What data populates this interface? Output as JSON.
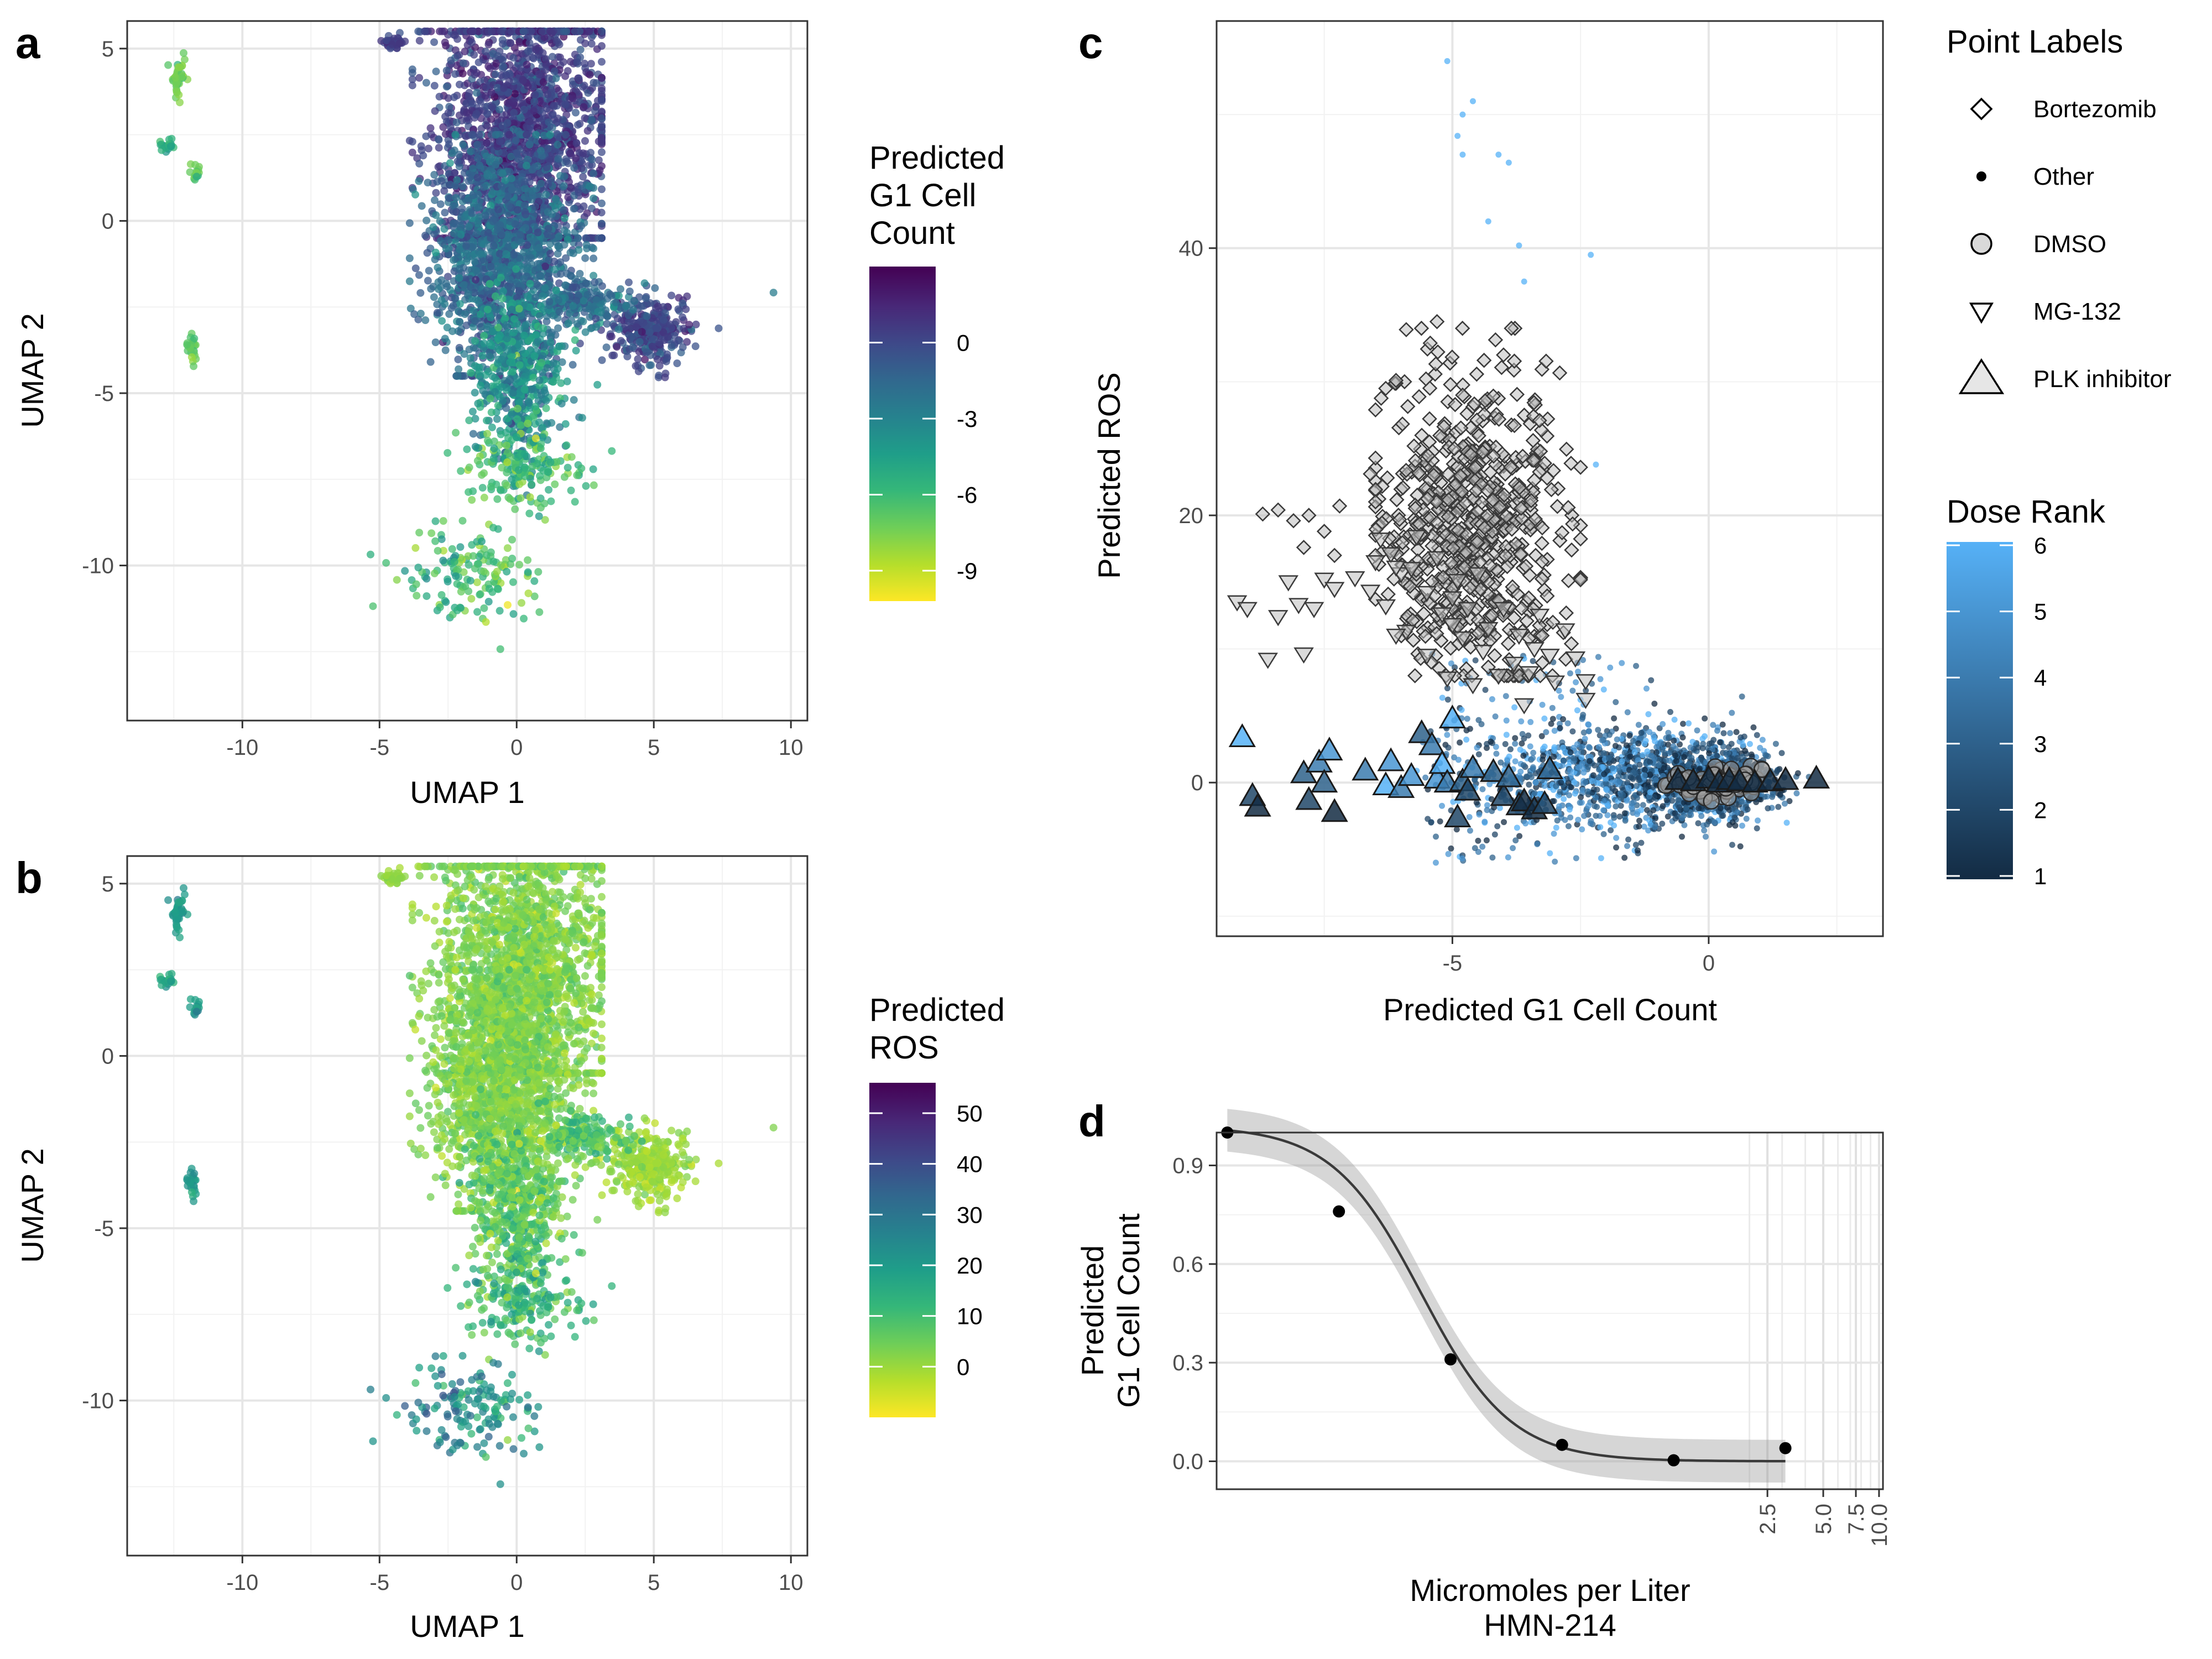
{
  "panels": {
    "a": "a",
    "b": "b",
    "c": "c",
    "d": "d"
  },
  "colors": {
    "viridis": [
      "#fde725",
      "#b5de2b",
      "#6ece58",
      "#35b779",
      "#1f9e89",
      "#26828e",
      "#31688e",
      "#3e4989",
      "#482878",
      "#440154"
    ],
    "dose_low": "#132b43",
    "dose_high": "#56b1f7",
    "gray_fill": "#d9d9d9",
    "grid": "#ebebeb",
    "axis": "#333333"
  },
  "chart_data": [
    {
      "panel": "a",
      "type": "scatter",
      "xlabel": "UMAP 1",
      "ylabel": "UMAP 2",
      "xlim": [
        -14.2,
        10.6
      ],
      "ylim": [
        -14.5,
        5.8
      ],
      "xticks": [
        -10,
        -5,
        0,
        5,
        10
      ],
      "xtick_labels": [
        "-10",
        "-5",
        "0",
        "5",
        "10"
      ],
      "yticks": [
        5,
        0,
        -5,
        -10
      ],
      "ytick_labels": [
        "5",
        "0",
        "-5",
        "-10"
      ],
      "legend": {
        "title": [
          "Predicted",
          "G1 Cell",
          "Count"
        ],
        "position": "right",
        "colorscale": "viridis-reversed",
        "ticks": [
          0,
          -3,
          -6,
          -9
        ],
        "tick_labels": [
          "0",
          "-3",
          "-6",
          "-9"
        ],
        "range": [
          -10.2,
          3
        ]
      },
      "clusters": [
        {
          "name": "main-upper",
          "center": [
            0.2,
            2.6
          ],
          "spread": [
            1.6,
            2.2
          ],
          "value_mean": 0.6,
          "value_sd": 0.9
        },
        {
          "name": "main-body",
          "center": [
            -0.5,
            -1.0
          ],
          "spread": [
            1.3,
            1.6
          ],
          "value_mean": -1.5,
          "value_sd": 1.0
        },
        {
          "name": "lower-trunk",
          "center": [
            0.0,
            -4.5
          ],
          "spread": [
            0.8,
            1.2
          ],
          "value_mean": -3.5,
          "value_sd": 1.3
        },
        {
          "name": "arm-right",
          "center": [
            4.8,
            -3.2
          ],
          "spread": [
            0.7,
            0.5
          ],
          "value_mean": 0.2,
          "value_sd": 0.8
        },
        {
          "name": "arm-mid",
          "center": [
            2.6,
            -2.4
          ],
          "spread": [
            0.8,
            0.3
          ],
          "value_mean": -1.8,
          "value_sd": 1.0
        },
        {
          "name": "top-blob",
          "center": [
            -4.5,
            5.2
          ],
          "spread": [
            0.2,
            0.1
          ],
          "value_mean": 0.5,
          "value_sd": 0.4
        },
        {
          "name": "strands-low",
          "center": [
            0.2,
            -7.0
          ],
          "spread": [
            1.0,
            0.6
          ],
          "value_mean": -6.0,
          "value_sd": 1.2
        },
        {
          "name": "strands-bottom",
          "center": [
            -1.5,
            -10.2
          ],
          "spread": [
            1.2,
            0.7
          ],
          "value_mean": -6.3,
          "value_sd": 1.2
        },
        {
          "name": "far-left-top",
          "center": [
            -12.3,
            4.2
          ],
          "spread": [
            0.15,
            0.3
          ],
          "value_mean": -7.3,
          "value_sd": 0.6
        },
        {
          "name": "far-left-mid",
          "center": [
            -12.7,
            2.2
          ],
          "spread": [
            0.15,
            0.1
          ],
          "value_mean": -5.0,
          "value_sd": 0.6
        },
        {
          "name": "far-left-mid2",
          "center": [
            -11.7,
            1.4
          ],
          "spread": [
            0.1,
            0.15
          ],
          "value_mean": -7.0,
          "value_sd": 0.6
        },
        {
          "name": "far-left-low",
          "center": [
            -11.8,
            -3.7
          ],
          "spread": [
            0.1,
            0.2
          ],
          "value_mean": -7.0,
          "value_sd": 0.6
        },
        {
          "name": "outlier",
          "center": [
            9.4,
            -2.1
          ],
          "spread": [
            0.02,
            0.02
          ],
          "value_mean": -2.5,
          "value_sd": 0.2
        }
      ]
    },
    {
      "panel": "b",
      "type": "scatter",
      "xlabel": "UMAP 1",
      "ylabel": "UMAP 2",
      "xlim": [
        -14.2,
        10.6
      ],
      "ylim": [
        -14.5,
        5.8
      ],
      "xticks": [
        -10,
        -5,
        0,
        5,
        10
      ],
      "xtick_labels": [
        "-10",
        "-5",
        "0",
        "5",
        "10"
      ],
      "yticks": [
        5,
        0,
        -5,
        -10
      ],
      "ytick_labels": [
        "5",
        "0",
        "-5",
        "-10"
      ],
      "legend": {
        "title": [
          "Predicted",
          "ROS"
        ],
        "position": "right",
        "colorscale": "viridis-reversed",
        "ticks": [
          50,
          40,
          30,
          20,
          10,
          0
        ],
        "tick_labels": [
          "50",
          "40",
          "30",
          "20",
          "10",
          "0"
        ],
        "range": [
          -10,
          56
        ]
      },
      "clusters": [
        {
          "name": "main-upper",
          "center": [
            0.2,
            2.6
          ],
          "spread": [
            1.6,
            2.2
          ],
          "value_mean": 3,
          "value_sd": 3
        },
        {
          "name": "main-body",
          "center": [
            -0.5,
            -1.0
          ],
          "spread": [
            1.3,
            1.6
          ],
          "value_mean": 3,
          "value_sd": 3
        },
        {
          "name": "lower-trunk",
          "center": [
            0.0,
            -4.5
          ],
          "spread": [
            0.8,
            1.2
          ],
          "value_mean": 7,
          "value_sd": 5
        },
        {
          "name": "arm-right",
          "center": [
            4.8,
            -3.2
          ],
          "spread": [
            0.7,
            0.5
          ],
          "value_mean": 0,
          "value_sd": 2
        },
        {
          "name": "arm-mid",
          "center": [
            2.6,
            -2.4
          ],
          "spread": [
            0.8,
            0.3
          ],
          "value_mean": 8,
          "value_sd": 5
        },
        {
          "name": "top-blob",
          "center": [
            -4.5,
            5.2
          ],
          "spread": [
            0.2,
            0.1
          ],
          "value_mean": 1,
          "value_sd": 1
        },
        {
          "name": "strands-low",
          "center": [
            0.2,
            -7.0
          ],
          "spread": [
            1.0,
            0.6
          ],
          "value_mean": 12,
          "value_sd": 6
        },
        {
          "name": "strands-bottom",
          "center": [
            -1.5,
            -10.2
          ],
          "spread": [
            1.2,
            0.7
          ],
          "value_mean": 22,
          "value_sd": 7
        },
        {
          "name": "far-left-top",
          "center": [
            -12.3,
            4.2
          ],
          "spread": [
            0.15,
            0.3
          ],
          "value_mean": 20,
          "value_sd": 3
        },
        {
          "name": "far-left-mid",
          "center": [
            -12.7,
            2.2
          ],
          "spread": [
            0.15,
            0.1
          ],
          "value_mean": 18,
          "value_sd": 3
        },
        {
          "name": "far-left-mid2",
          "center": [
            -11.7,
            1.4
          ],
          "spread": [
            0.1,
            0.15
          ],
          "value_mean": 20,
          "value_sd": 3
        },
        {
          "name": "far-left-low",
          "center": [
            -11.8,
            -3.7
          ],
          "spread": [
            0.1,
            0.2
          ],
          "value_mean": 20,
          "value_sd": 3
        },
        {
          "name": "outlier",
          "center": [
            9.4,
            -2.1
          ],
          "spread": [
            0.02,
            0.02
          ],
          "value_mean": 3,
          "value_sd": 0.5
        }
      ]
    },
    {
      "panel": "c",
      "type": "scatter",
      "xlabel": "Predicted G1 Cell Count",
      "ylabel": "Predicted ROS",
      "xlim": [
        -9.6,
        3.4
      ],
      "ylim": [
        -11.5,
        57
      ],
      "xticks": [
        -5,
        0
      ],
      "xtick_labels": [
        "-5",
        "0"
      ],
      "yticks": [
        40,
        20,
        0
      ],
      "ytick_labels": [
        "40",
        "20",
        "0"
      ],
      "legend": {
        "title": "Point Labels",
        "position": "right",
        "entries": [
          {
            "label": "Bortezomib",
            "shape": "diamond"
          },
          {
            "label": "Other",
            "shape": "dot"
          },
          {
            "label": "DMSO",
            "shape": "circle"
          },
          {
            "label": "MG-132",
            "shape": "triangle-down"
          },
          {
            "label": "PLK inhibitor",
            "shape": "triangle-up"
          }
        ]
      },
      "colorbar": {
        "title": "Dose Rank",
        "ticks": [
          6,
          5,
          4,
          3,
          2,
          1
        ],
        "tick_labels": [
          "6",
          "5",
          "4",
          "3",
          "2",
          "1"
        ],
        "range": [
          1,
          6
        ]
      },
      "groups": {
        "other_main": {
          "center": [
            -1.5,
            0.5
          ],
          "spread": [
            1.6,
            1.8
          ],
          "count": 1100
        },
        "other_dense": {
          "center": [
            0.0,
            0.0
          ],
          "spread": [
            0.6,
            1.2
          ],
          "count": 700
        },
        "other_sparse": {
          "x_range": [
            -5.5,
            -1.0
          ],
          "y_range": [
            -6,
            10
          ],
          "count": 220
        },
        "bortezomib": {
          "center": [
            -4.6,
            19
          ],
          "spread": [
            0.9,
            6.0
          ],
          "count": 650
        },
        "dmso": {
          "center": [
            0.2,
            0.0
          ],
          "spread": [
            0.5,
            0.5
          ],
          "count": 90
        }
      },
      "other_outliers": [
        [
          -5.1,
          54
        ],
        [
          -4.6,
          51
        ],
        [
          -4.8,
          50
        ],
        [
          -4.8,
          47
        ],
        [
          -4.1,
          47
        ],
        [
          -4.3,
          42
        ],
        [
          -2.3,
          39.5
        ],
        [
          -3.7,
          40.2
        ],
        [
          -3.9,
          46.4
        ],
        [
          -4.9,
          48.4
        ],
        [
          -3.6,
          37.5
        ],
        [
          -2.2,
          23.8
        ],
        [
          -2.5,
          6.2
        ]
      ],
      "bortezomib_extra": [
        [
          -8.7,
          20.1
        ],
        [
          -8.4,
          20.4
        ],
        [
          -8.1,
          19.6
        ],
        [
          -7.8,
          20.0
        ],
        [
          -7.5,
          18.8
        ],
        [
          -7.3,
          17.0
        ],
        [
          -7.9,
          17.6
        ],
        [
          -6.6,
          23.1
        ],
        [
          -6.1,
          30.1
        ],
        [
          -6.3,
          29.5
        ],
        [
          -5.9,
          33.9
        ],
        [
          -5.3,
          34.5
        ],
        [
          -4.8,
          29.0
        ],
        [
          -3.3,
          27.1
        ],
        [
          -3.2,
          23.9
        ],
        [
          -2.5,
          23.6
        ],
        [
          -7.2,
          20.7
        ]
      ],
      "mg132": [
        [
          -9.2,
          13.5
        ],
        [
          -9.0,
          13.0
        ],
        [
          -8.2,
          15.0
        ],
        [
          -8.0,
          13.3
        ],
        [
          -7.7,
          13.0
        ],
        [
          -8.4,
          12.4
        ],
        [
          -7.5,
          15.2
        ],
        [
          -7.3,
          14.5
        ],
        [
          -8.6,
          9.2
        ],
        [
          -7.9,
          9.6
        ],
        [
          -6.5,
          16.5
        ],
        [
          -6.2,
          17.1
        ],
        [
          -6.0,
          15.6
        ],
        [
          -5.8,
          16.0
        ],
        [
          -5.5,
          14.2
        ],
        [
          -6.3,
          13.2
        ],
        [
          -5.9,
          11.3
        ],
        [
          -5.2,
          12.6
        ],
        [
          -5.0,
          11.8
        ],
        [
          -4.7,
          13.0
        ],
        [
          -4.3,
          11.5
        ],
        [
          -4.0,
          13.0
        ],
        [
          -3.7,
          11.0
        ],
        [
          -3.4,
          10.0
        ],
        [
          -3.1,
          9.5
        ],
        [
          -5.5,
          9.5
        ],
        [
          -4.8,
          10.8
        ],
        [
          -4.4,
          9.8
        ],
        [
          -3.8,
          8.9
        ],
        [
          -3.5,
          8.2
        ],
        [
          -4.1,
          8.0
        ],
        [
          -2.4,
          7.6
        ],
        [
          -3.0,
          7.5
        ],
        [
          -3.6,
          5.8
        ],
        [
          -2.4,
          6.2
        ],
        [
          -4.5,
          15.6
        ],
        [
          -4.9,
          15.1
        ],
        [
          -5.3,
          16.8
        ],
        [
          -6.6,
          14.3
        ],
        [
          -6.1,
          11.0
        ],
        [
          -3.3,
          12.5
        ],
        [
          -2.8,
          11.4
        ],
        [
          -2.6,
          9.3
        ],
        [
          -4.6,
          7.3
        ],
        [
          -5.1,
          7.8
        ],
        [
          -6.4,
          18.2
        ],
        [
          -5.7,
          18.4
        ],
        [
          -6.1,
          16.1
        ],
        [
          -6.9,
          15.3
        ],
        [
          -5.0,
          13.8
        ]
      ],
      "plk": [
        [
          -9.1,
          3.4,
          6
        ],
        [
          -8.9,
          -1.0,
          2
        ],
        [
          -8.8,
          -1.8,
          1
        ],
        [
          -7.9,
          0.7,
          3
        ],
        [
          -7.8,
          -1.3,
          2
        ],
        [
          -7.6,
          1.5,
          4
        ],
        [
          -7.4,
          2.4,
          5
        ],
        [
          -7.3,
          -2.2,
          1
        ],
        [
          -7.5,
          0.0,
          3
        ],
        [
          -6.7,
          0.9,
          4
        ],
        [
          -6.3,
          -0.2,
          6
        ],
        [
          -6.2,
          1.6,
          5
        ],
        [
          -6.0,
          -0.4,
          4
        ],
        [
          -5.8,
          0.5,
          5
        ],
        [
          -5.6,
          3.7,
          3
        ],
        [
          -5.4,
          2.8,
          4
        ],
        [
          -5.3,
          0.3,
          5
        ],
        [
          -5.2,
          1.4,
          6
        ],
        [
          -5.1,
          0.0,
          4
        ],
        [
          -5.0,
          4.8,
          6
        ],
        [
          -4.8,
          0.1,
          3
        ],
        [
          -4.7,
          -0.6,
          2
        ],
        [
          -4.9,
          -2.6,
          2
        ],
        [
          -4.6,
          1.1,
          4
        ],
        [
          -4.2,
          0.8,
          3
        ],
        [
          -4.0,
          -1.0,
          2
        ],
        [
          -3.9,
          0.4,
          3
        ],
        [
          -3.7,
          -1.7,
          2
        ],
        [
          -3.6,
          -1.4,
          1
        ],
        [
          -3.4,
          -2.0,
          1
        ],
        [
          -3.1,
          1.0,
          3
        ],
        [
          -3.2,
          -1.6,
          2
        ],
        [
          -0.6,
          0.2,
          1
        ],
        [
          -0.3,
          0.1,
          1
        ],
        [
          0.0,
          0.3,
          1
        ],
        [
          0.2,
          0.0,
          1
        ],
        [
          0.4,
          0.2,
          1
        ],
        [
          0.6,
          0.1,
          1
        ],
        [
          0.9,
          0.0,
          1
        ],
        [
          1.2,
          0.1,
          1
        ],
        [
          1.5,
          0.2,
          1
        ],
        [
          2.1,
          0.3,
          1
        ]
      ]
    },
    {
      "panel": "d",
      "type": "line",
      "xlabel": [
        "Micromoles per Liter",
        "HMN-214"
      ],
      "ylabel": [
        "Predicted",
        "G1 Cell Count"
      ],
      "xscale": "log",
      "xlim": [
        0.00267,
        10.5
      ],
      "ylim": [
        -0.085,
        1.0
      ],
      "xticks": [
        2.5,
        5.0,
        7.5,
        10.0
      ],
      "xtick_labels": [
        "2.5",
        "5.0",
        "7.5",
        "10.0"
      ],
      "x_minor_gridlines": [
        2,
        3,
        4,
        6,
        7,
        8,
        9
      ],
      "yticks": [
        0.9,
        0.6,
        0.3,
        0.0
      ],
      "ytick_labels": [
        "0.9",
        "0.6",
        "0.3",
        "0.0"
      ],
      "points": [
        {
          "x": 0.00305,
          "y": 1.0
        },
        {
          "x": 0.0122,
          "y": 0.76
        },
        {
          "x": 0.0488,
          "y": 0.31
        },
        {
          "x": 0.195,
          "y": 0.05
        },
        {
          "x": 0.78,
          "y": 0.003
        },
        {
          "x": 3.125,
          "y": 0.04
        }
      ],
      "curve": {
        "top": 1.02,
        "bottom": 0.0,
        "ec50": 0.034,
        "hill": 1.8
      },
      "ribbon_halfwidth": 0.065
    }
  ]
}
